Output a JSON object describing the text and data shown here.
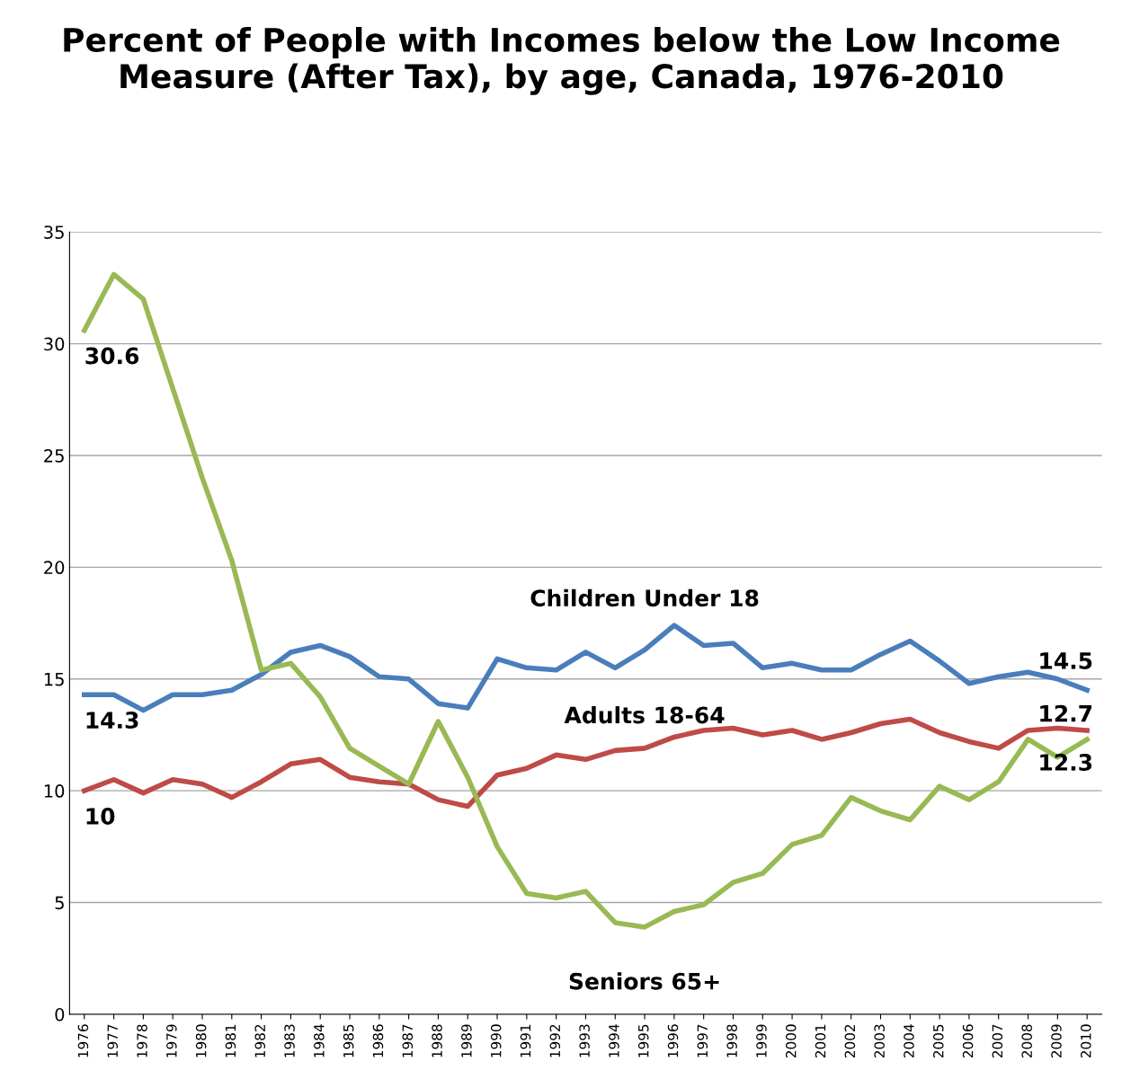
{
  "chart_data": {
    "type": "line",
    "title": "Percent of People with Incomes below the Low Income Measure (After Tax), by age, Canada, 1976-2010",
    "categories": [
      "1976",
      "1977",
      "1978",
      "1979",
      "1980",
      "1981",
      "1982",
      "1983",
      "1984",
      "1985",
      "1986",
      "1987",
      "1988",
      "1989",
      "1990",
      "1991",
      "1992",
      "1993",
      "1994",
      "1995",
      "1996",
      "1997",
      "1998",
      "1999",
      "2000",
      "2001",
      "2002",
      "2003",
      "2004",
      "2005",
      "2006",
      "2007",
      "2008",
      "2009",
      "2010"
    ],
    "series": [
      {
        "name": "Children Under 18",
        "color": "#4a7ebb",
        "values": [
          14.3,
          14.3,
          13.6,
          14.3,
          14.3,
          14.5,
          15.2,
          16.2,
          16.5,
          16.0,
          15.1,
          15.0,
          13.9,
          13.7,
          15.9,
          15.5,
          15.4,
          16.2,
          15.5,
          16.3,
          17.4,
          16.5,
          16.6,
          15.5,
          15.7,
          15.4,
          15.4,
          16.1,
          16.7,
          15.8,
          14.8,
          15.1,
          15.3,
          15.0,
          14.5
        ],
        "value_labels": [
          "14.3",
          null,
          null,
          null,
          null,
          null,
          null,
          null,
          null,
          null,
          null,
          null,
          null,
          null,
          null,
          null,
          null,
          null,
          null,
          null,
          null,
          null,
          null,
          null,
          null,
          null,
          null,
          null,
          null,
          null,
          null,
          null,
          null,
          null,
          "14.5"
        ]
      },
      {
        "name": "Adults 18-64",
        "color": "#be4b48",
        "values": [
          10.0,
          10.5,
          9.9,
          10.5,
          10.3,
          9.7,
          10.4,
          11.2,
          11.4,
          10.6,
          10.4,
          10.3,
          9.6,
          9.3,
          10.7,
          11.0,
          11.6,
          11.4,
          11.8,
          11.9,
          12.4,
          12.7,
          12.8,
          12.5,
          12.7,
          12.3,
          12.6,
          13.0,
          13.2,
          12.6,
          12.2,
          11.9,
          12.7,
          12.8,
          12.7
        ],
        "value_labels": [
          "10",
          null,
          null,
          null,
          null,
          null,
          null,
          null,
          null,
          null,
          null,
          null,
          null,
          null,
          null,
          null,
          null,
          null,
          null,
          null,
          null,
          null,
          null,
          null,
          null,
          null,
          null,
          null,
          null,
          null,
          null,
          null,
          null,
          null,
          "12.7"
        ]
      },
      {
        "name": "Seniors 65+",
        "color": "#98b954",
        "values": [
          30.6,
          33.1,
          32.0,
          28.0,
          24.0,
          20.3,
          15.4,
          15.7,
          14.2,
          11.9,
          11.1,
          10.3,
          13.1,
          10.6,
          7.5,
          5.4,
          5.2,
          5.5,
          4.1,
          3.9,
          4.6,
          4.9,
          5.9,
          6.3,
          7.6,
          8.0,
          9.7,
          9.1,
          8.7,
          10.2,
          9.6,
          10.4,
          12.3,
          11.5,
          12.3
        ],
        "value_labels": [
          "30.6",
          null,
          null,
          null,
          null,
          null,
          null,
          null,
          null,
          null,
          null,
          null,
          null,
          null,
          null,
          null,
          null,
          null,
          null,
          null,
          null,
          null,
          null,
          null,
          null,
          null,
          null,
          null,
          null,
          null,
          null,
          null,
          null,
          null,
          "12.3"
        ]
      }
    ],
    "ylim": [
      0,
      35
    ],
    "yticks": [
      0,
      5,
      10,
      15,
      20,
      25,
      30,
      35
    ],
    "grid": "y",
    "legend": false,
    "marker": "none",
    "line_style": "solid"
  }
}
